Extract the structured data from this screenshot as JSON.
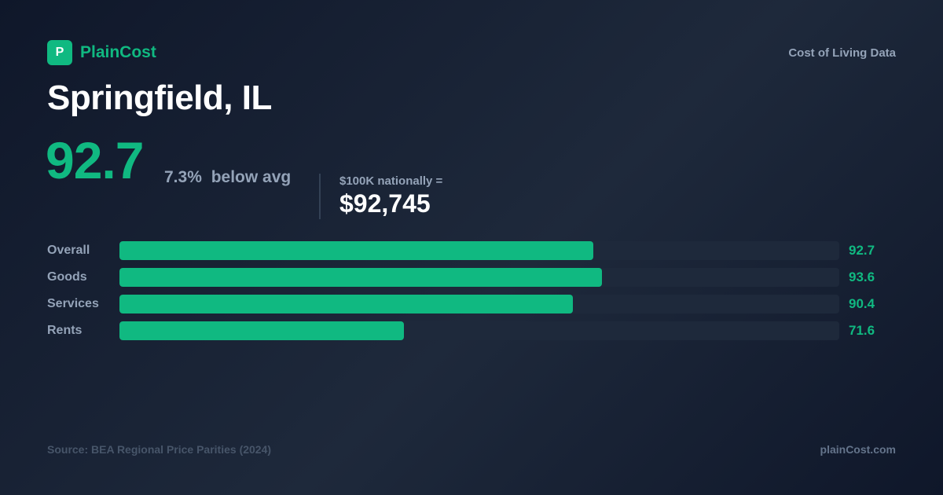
{
  "brand": {
    "logo_letter": "P",
    "name": "PlainCost",
    "tagline": "Cost of Living Data",
    "accent_color": "#10b981"
  },
  "city": "Springfield, IL",
  "summary": {
    "index": "92.7",
    "diff_pct": "7.3%",
    "diff_label": "below avg",
    "equiv_label": "$100K nationally =",
    "equiv_value": "$92,745"
  },
  "chart_data": {
    "type": "bar",
    "orientation": "horizontal",
    "categories": [
      "Overall",
      "Goods",
      "Services",
      "Rents"
    ],
    "values": [
      92.7,
      93.6,
      90.4,
      71.6
    ],
    "value_labels": [
      "92.7",
      "93.6",
      "90.4",
      "71.6"
    ],
    "xlim": [
      40,
      120
    ],
    "grid": false,
    "legend": "none",
    "colors": {
      "bar": "#10b981",
      "track": "#1e293b"
    }
  },
  "footer": {
    "source": "Source: BEA Regional Price Parities (2024)",
    "site": "plainCost.com"
  }
}
